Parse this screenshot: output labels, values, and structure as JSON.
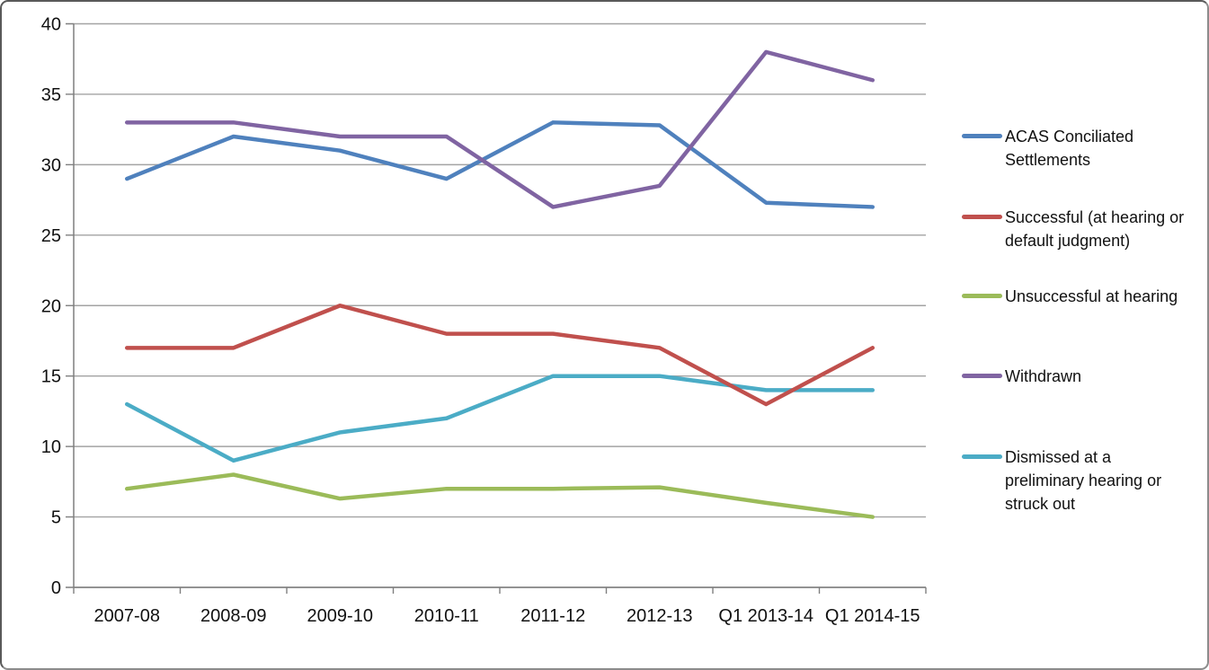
{
  "chart_data": {
    "type": "line",
    "title": "",
    "xlabel": "",
    "ylabel": "",
    "categories": [
      "2007-08",
      "2008-09",
      "2009-10",
      "2010-11",
      "2011-12",
      "2012-13",
      "Q1 2013-14",
      "Q1 2014-15"
    ],
    "series": [
      {
        "id": "acas",
        "name": "ACAS Conciliated Settlements",
        "legend_label": "ACAS Conciliated\nSettlements",
        "color": "#4F81BD",
        "values": [
          29,
          32,
          31,
          29,
          33,
          32.8,
          27.3,
          27
        ]
      },
      {
        "id": "successful",
        "name": "Successful (at hearing or default judgment)",
        "legend_label": "Successful (at hearing or\ndefault judgment)",
        "color": "#C0504D",
        "values": [
          17,
          17,
          20,
          18,
          18,
          17,
          13,
          17
        ]
      },
      {
        "id": "unsuccessful",
        "name": "Unsuccessful at hearing",
        "legend_label": "Unsuccessful at hearing",
        "color": "#9BBB59",
        "values": [
          7,
          8,
          6.3,
          7,
          7,
          7.1,
          6,
          5
        ]
      },
      {
        "id": "withdrawn",
        "name": "Withdrawn",
        "legend_label": "Withdrawn",
        "color": "#8064A2",
        "values": [
          33,
          33,
          32,
          32,
          27,
          28.5,
          38,
          36
        ]
      },
      {
        "id": "dismissed",
        "name": "Dismissed at a preliminary hearing or struck out",
        "legend_label": "Dismissed at a\npreliminary hearing or\nstruck out",
        "color": "#4BACC6",
        "values": [
          13,
          9,
          11,
          12,
          15,
          15,
          14,
          14
        ]
      }
    ],
    "ylim": [
      0,
      40
    ],
    "ytick_step": 5,
    "yticks": [
      0,
      5,
      10,
      15,
      20,
      25,
      30,
      35,
      40
    ],
    "grid": true,
    "legend_position": "right",
    "grid_color": "#A3A3A3",
    "axis_color": "#7F7F7F",
    "text_color": "#111111"
  }
}
